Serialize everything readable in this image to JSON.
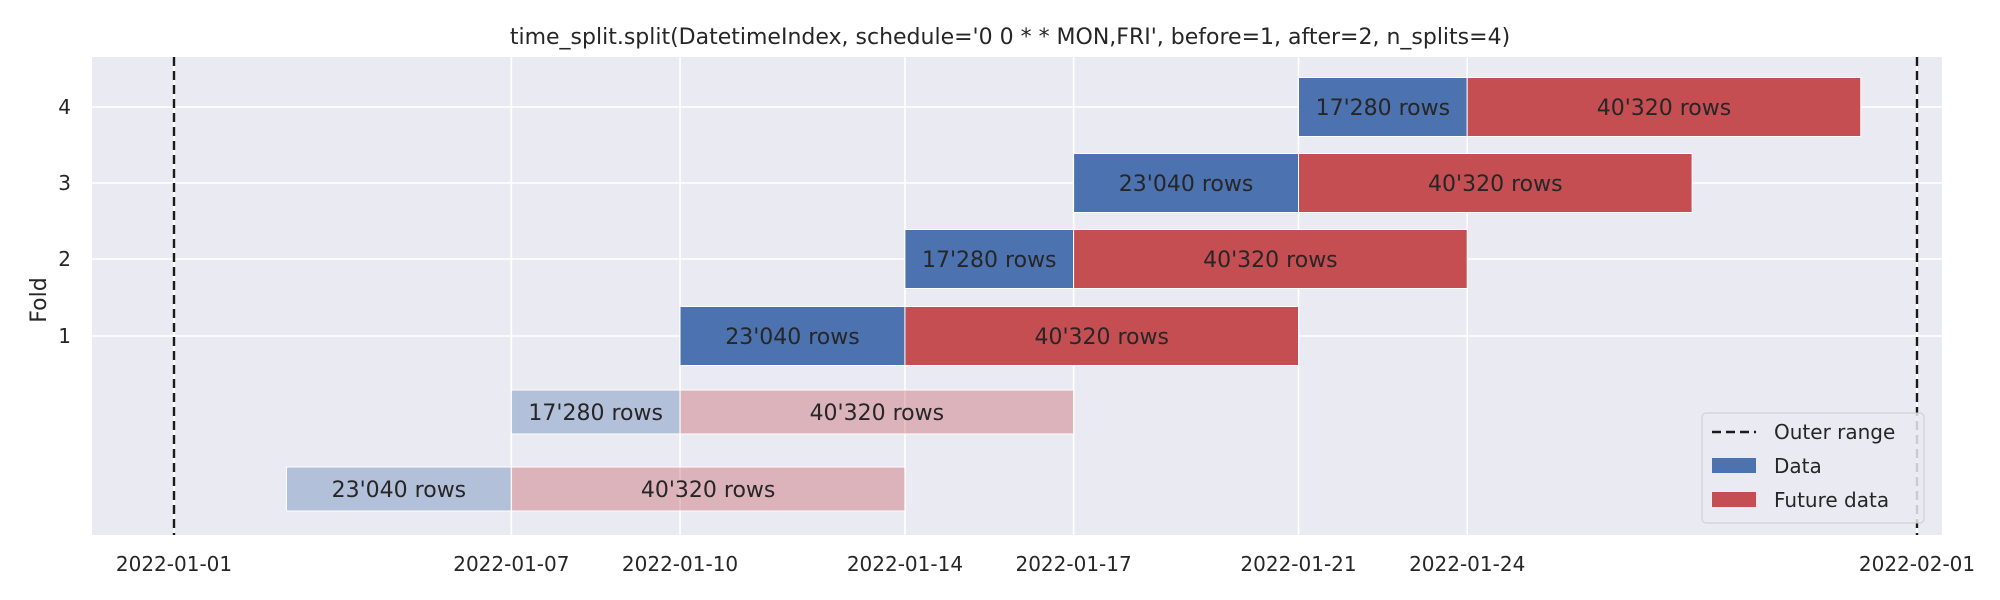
{
  "chart_data": {
    "type": "bar",
    "orientation": "horizontal",
    "title": "time_split.split(DatetimeIndex, schedule='0 0 * * MON,FRI', before=1, after=2, n_splits=4)",
    "xlabel": "",
    "ylabel": "Fold",
    "x_ticks": [
      "2022-01-01",
      "2022-01-07",
      "2022-01-10",
      "2022-01-14",
      "2022-01-17",
      "2022-01-21",
      "2022-01-24",
      "2022-02-01"
    ],
    "y_ticks": [
      "1",
      "2",
      "3",
      "4"
    ],
    "xlim": [
      "2021-12-30",
      "2022-02-01"
    ],
    "outer_range": [
      "2022-01-01",
      "2022-02-01"
    ],
    "grid": true,
    "legend": {
      "placement": "lower-right",
      "entries": [
        "Outer range",
        "Data",
        "Future data"
      ]
    },
    "colors": {
      "data": "#4c72b0",
      "future": "#c44e52",
      "background": "#eaeaf2",
      "grid": "#ffffff"
    },
    "rows": [
      {
        "fold": "",
        "faded": true,
        "data": {
          "start": "2022-01-03",
          "end": "2022-01-07",
          "label": "23'040 rows"
        },
        "future": {
          "start": "2022-01-07",
          "end": "2022-01-14",
          "label": "40'320 rows"
        }
      },
      {
        "fold": "",
        "faded": true,
        "data": {
          "start": "2022-01-07",
          "end": "2022-01-10",
          "label": "17'280 rows"
        },
        "future": {
          "start": "2022-01-10",
          "end": "2022-01-17",
          "label": "40'320 rows"
        }
      },
      {
        "fold": "1",
        "faded": false,
        "data": {
          "start": "2022-01-10",
          "end": "2022-01-14",
          "label": "23'040 rows"
        },
        "future": {
          "start": "2022-01-14",
          "end": "2022-01-21",
          "label": "40'320 rows"
        }
      },
      {
        "fold": "2",
        "faded": false,
        "data": {
          "start": "2022-01-14",
          "end": "2022-01-17",
          "label": "17'280 rows"
        },
        "future": {
          "start": "2022-01-17",
          "end": "2022-01-24",
          "label": "40'320 rows"
        }
      },
      {
        "fold": "3",
        "faded": false,
        "data": {
          "start": "2022-01-17",
          "end": "2022-01-21",
          "label": "23'040 rows"
        },
        "future": {
          "start": "2022-01-21",
          "end": "2022-01-28",
          "label": "40'320 rows"
        }
      },
      {
        "fold": "4",
        "faded": false,
        "data": {
          "start": "2022-01-21",
          "end": "2022-01-24",
          "label": "17'280 rows"
        },
        "future": {
          "start": "2022-01-24",
          "end": "2022-01-31",
          "label": "40'320 rows"
        }
      }
    ]
  }
}
